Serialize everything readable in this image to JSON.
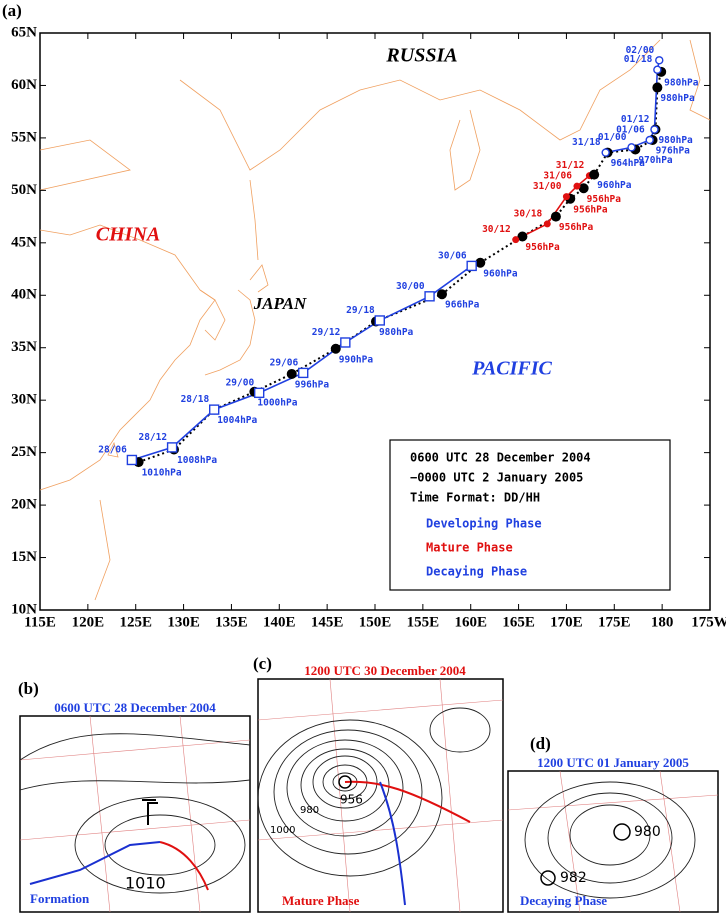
{
  "panel_a": {
    "label": "(a)",
    "lon_range": [
      115,
      185
    ],
    "lat_range": [
      10,
      65
    ],
    "lat_ticks": [
      {
        "value": 10,
        "label": "10N"
      },
      {
        "value": 15,
        "label": "15N"
      },
      {
        "value": 20,
        "label": "20N"
      },
      {
        "value": 25,
        "label": "25N"
      },
      {
        "value": 30,
        "label": "30N"
      },
      {
        "value": 35,
        "label": "35N"
      },
      {
        "value": 40,
        "label": "40N"
      },
      {
        "value": 45,
        "label": "45N"
      },
      {
        "value": 50,
        "label": "50N"
      },
      {
        "value": 55,
        "label": "55N"
      },
      {
        "value": 60,
        "label": "60N"
      },
      {
        "value": 65,
        "label": "65N"
      }
    ],
    "lon_ticks": [
      {
        "value": 115,
        "label": "115E"
      },
      {
        "value": 120,
        "label": "120E"
      },
      {
        "value": 125,
        "label": "125E"
      },
      {
        "value": 130,
        "label": "130E"
      },
      {
        "value": 135,
        "label": "135E"
      },
      {
        "value": 140,
        "label": "140E"
      },
      {
        "value": 145,
        "label": "145E"
      },
      {
        "value": 150,
        "label": "150E"
      },
      {
        "value": 155,
        "label": "155E"
      },
      {
        "value": 160,
        "label": "160E"
      },
      {
        "value": 165,
        "label": "165E"
      },
      {
        "value": 170,
        "label": "170E"
      },
      {
        "value": 175,
        "label": "175E"
      },
      {
        "value": 180,
        "label": "180"
      },
      {
        "value": 185,
        "label": "175W"
      }
    ],
    "regions": [
      "RUSSIA",
      "CHINA",
      "JAPAN",
      "PACIFIC"
    ],
    "best_track_color": "#000000",
    "legend": {
      "title_lines": [
        "0600 UTC 28 December 2004",
        "−0000 UTC 2 January 2005",
        "Time Format: DD/HH"
      ],
      "phases": [
        {
          "name": "Developing Phase",
          "color": "#2040e0",
          "marker": "square",
          "points": [
            {
              "time": "28/06",
              "lon": 124.6,
              "lat": 24.3
            },
            {
              "time": "28/12",
              "lon": 128.8,
              "lat": 25.5
            },
            {
              "time": "28/18",
              "lon": 133.2,
              "lat": 29.1
            },
            {
              "time": "29/00",
              "lon": 137.9,
              "lat": 30.7
            },
            {
              "time": "29/06",
              "lon": 142.5,
              "lat": 32.6
            },
            {
              "time": "29/12",
              "lon": 146.9,
              "lat": 35.5
            },
            {
              "time": "29/18",
              "lon": 150.5,
              "lat": 37.6
            },
            {
              "time": "30/00",
              "lon": 155.7,
              "lat": 39.9
            },
            {
              "time": "30/06",
              "lon": 160.1,
              "lat": 42.8
            }
          ],
          "best_track": [
            {
              "pressure": "1010hPa",
              "lon": 125.3,
              "lat": 24.1
            },
            {
              "pressure": "1008hPa",
              "lon": 129.0,
              "lat": 25.3
            },
            {
              "pressure": "1004hPa",
              "lon": 133.2,
              "lat": 29.1
            },
            {
              "pressure": "1000hPa",
              "lon": 137.4,
              "lat": 30.8
            },
            {
              "pressure": "996hPa",
              "lon": 141.3,
              "lat": 32.5
            },
            {
              "pressure": "990hPa",
              "lon": 145.9,
              "lat": 34.9
            },
            {
              "pressure": "980hPa",
              "lon": 150.1,
              "lat": 37.5
            },
            {
              "pressure": "966hPa",
              "lon": 157.0,
              "lat": 40.1
            },
            {
              "pressure": "960hPa",
              "lon": 161.0,
              "lat": 43.1
            }
          ]
        },
        {
          "name": "Mature Phase",
          "color": "#e01010",
          "marker": "dot",
          "points": [
            {
              "time": "30/12",
              "lon": 164.7,
              "lat": 45.3
            },
            {
              "time": "30/18",
              "lon": 168.0,
              "lat": 46.8
            },
            {
              "time": "31/00",
              "lon": 170.0,
              "lat": 49.4
            },
            {
              "time": "31/06",
              "lon": 171.1,
              "lat": 50.4
            },
            {
              "time": "31/12",
              "lon": 172.4,
              "lat": 51.4
            }
          ],
          "best_track": [
            {
              "pressure": "956hPa",
              "lon": 165.4,
              "lat": 45.6
            },
            {
              "pressure": "956hPa",
              "lon": 168.9,
              "lat": 47.5
            },
            {
              "pressure": "956hPa",
              "lon": 170.4,
              "lat": 49.2
            },
            {
              "pressure": "956hPa",
              "lon": 171.8,
              "lat": 50.2
            }
          ]
        },
        {
          "name": "Decaying Phase",
          "color": "#2040e0",
          "marker": "circle",
          "points": [
            {
              "time": "31/18",
              "lon": 174.1,
              "lat": 53.6
            },
            {
              "time": "01/00",
              "lon": 176.8,
              "lat": 54.1
            },
            {
              "time": "01/06",
              "lon": 178.7,
              "lat": 54.8
            },
            {
              "time": "01/12",
              "lon": 179.2,
              "lat": 55.8
            },
            {
              "time": "01/18",
              "lon": 179.5,
              "lat": 61.5
            },
            {
              "time": "02/00",
              "lon": 179.7,
              "lat": 62.4
            }
          ],
          "best_track": [
            {
              "pressure": "960hPa",
              "lon": 172.9,
              "lat": 51.5
            },
            {
              "pressure": "964hPa",
              "lon": 174.3,
              "lat": 53.6
            },
            {
              "pressure": "970hPa",
              "lon": 177.2,
              "lat": 53.9
            },
            {
              "pressure": "976hPa",
              "lon": 179.0,
              "lat": 54.8
            },
            {
              "pressure": "980hPa",
              "lon": 179.3,
              "lat": 55.8
            },
            {
              "pressure": "980hPa",
              "lon": 179.5,
              "lat": 59.8
            },
            {
              "pressure": "980hPa",
              "lon": 179.9,
              "lat": 61.3
            }
          ]
        }
      ]
    }
  },
  "panel_b": {
    "label": "(b)",
    "title": "0600 UTC 28 December 2004",
    "caption": "Formation",
    "contour_labels": [
      "1010"
    ]
  },
  "panel_c": {
    "label": "(c)",
    "title": "1200 UTC 30 December 2004",
    "caption": "Mature Phase",
    "contour_labels": [
      "956",
      "980",
      "1000"
    ]
  },
  "panel_d": {
    "label": "(d)",
    "title": "1200 UTC 01 January 2005",
    "caption": "Decaying Phase",
    "contour_labels": [
      "980",
      "982"
    ]
  }
}
